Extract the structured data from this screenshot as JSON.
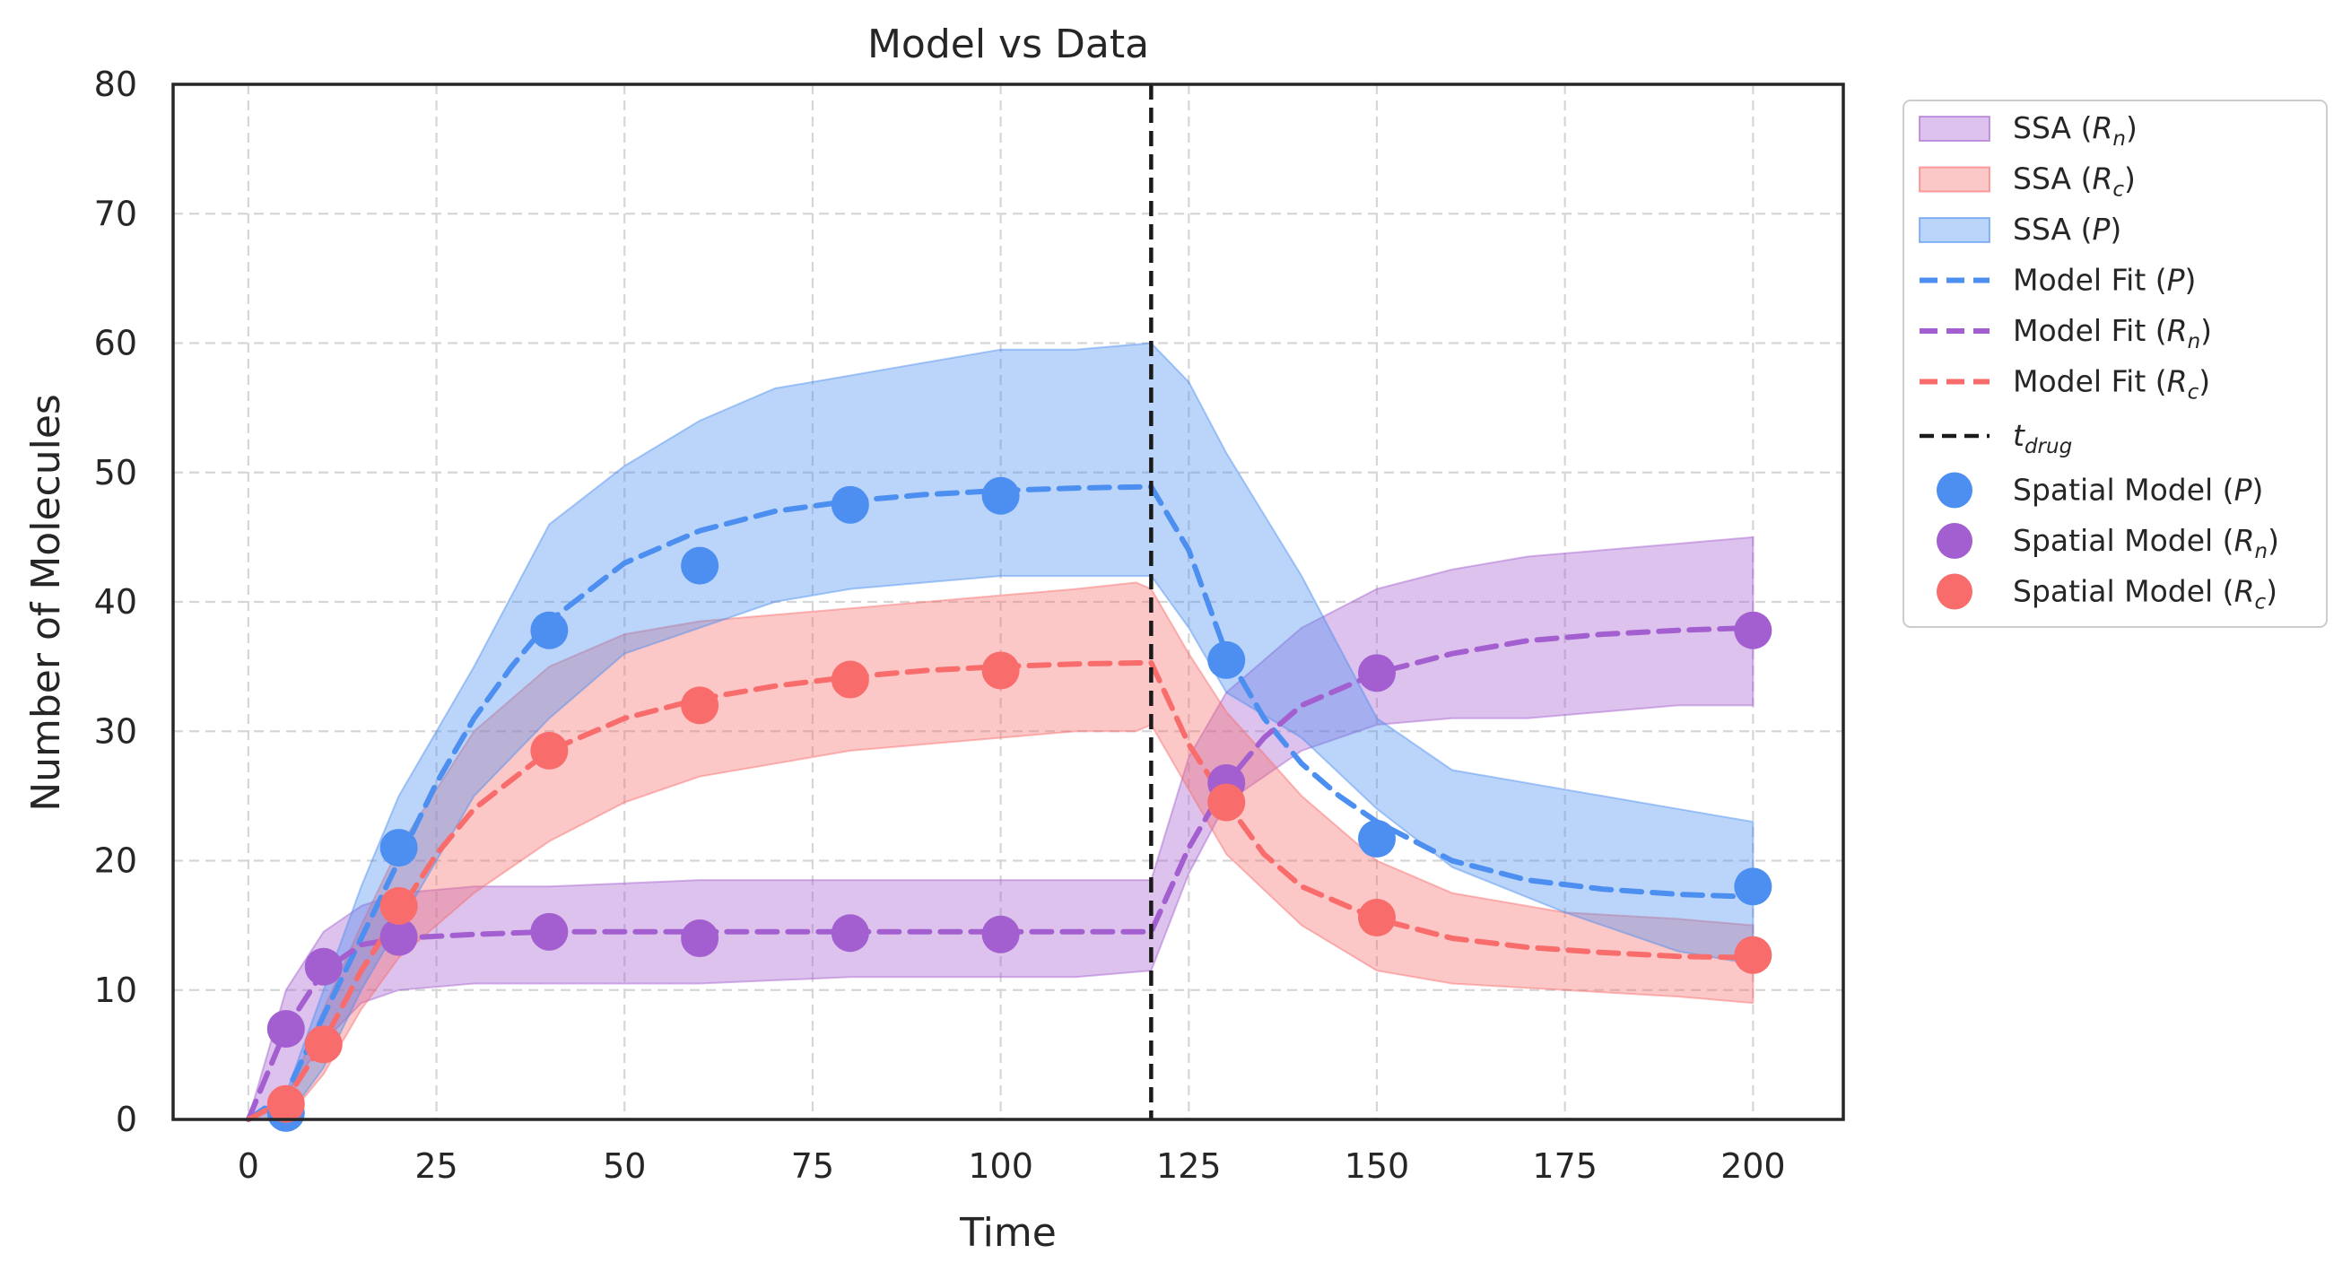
{
  "chart_data": {
    "type": "line",
    "title": "Model vs Data",
    "xlabel": "Time",
    "ylabel": "Number of Molecules",
    "xlim": [
      -10,
      212
    ],
    "ylim": [
      0,
      80
    ],
    "xticks": [
      0,
      25,
      50,
      75,
      100,
      125,
      150,
      175,
      200
    ],
    "yticks": [
      0,
      10,
      20,
      30,
      40,
      50,
      60,
      70,
      80
    ],
    "grid": true,
    "legend_position": "outside-right",
    "t_drug": 120,
    "colors": {
      "P": "#4C8FF0",
      "Rn": "#A35FCF",
      "Rc": "#F86C6C",
      "tdrug": "#1a1a1a"
    },
    "bands": [
      {
        "key": "Rn",
        "label_prefix": "SSA (",
        "label_sym": "R",
        "label_sub": "n",
        "label_suffix": ")",
        "x": [
          0,
          5,
          10,
          15,
          20,
          30,
          40,
          60,
          80,
          100,
          110,
          120,
          125,
          130,
          140,
          150,
          160,
          170,
          180,
          190,
          200
        ],
        "lower": [
          0,
          2,
          6,
          9,
          10,
          10.5,
          10.5,
          10.5,
          11,
          11,
          11,
          11.5,
          19,
          24.5,
          28.5,
          30.5,
          31,
          31,
          31.5,
          32,
          32
        ],
        "upper": [
          0,
          10,
          14.5,
          16.5,
          17.5,
          18,
          18,
          18.5,
          18.5,
          18.5,
          18.5,
          18.5,
          28,
          33,
          38,
          41,
          42.5,
          43.5,
          44,
          44.5,
          45
        ]
      },
      {
        "key": "Rc",
        "label_prefix": "SSA (",
        "label_sym": "R",
        "label_sub": "c",
        "label_suffix": ")",
        "x": [
          0,
          5,
          10,
          15,
          20,
          30,
          40,
          50,
          60,
          80,
          100,
          110,
          118,
          120,
          125,
          130,
          140,
          150,
          160,
          175,
          190,
          200
        ],
        "lower": [
          0,
          0,
          3.5,
          8.5,
          12.5,
          17.5,
          21.5,
          24.5,
          26.5,
          28.5,
          29.5,
          30,
          30,
          30.5,
          25.5,
          20.5,
          15,
          11.5,
          10.5,
          10,
          9.5,
          9
        ],
        "upper": [
          0,
          1.5,
          8.5,
          15,
          21,
          30,
          35,
          37.5,
          38.5,
          39.5,
          40.5,
          41,
          41.5,
          41,
          36,
          31.5,
          25,
          20,
          17.5,
          16,
          15.5,
          15
        ]
      },
      {
        "key": "P",
        "label_prefix": "SSA (",
        "label_sym": "P",
        "label_sub": "",
        "label_suffix": ")",
        "x": [
          0,
          5,
          10,
          15,
          20,
          25,
          30,
          40,
          50,
          60,
          70,
          80,
          90,
          100,
          110,
          120,
          125,
          130,
          140,
          150,
          160,
          175,
          190,
          200
        ],
        "lower": [
          0,
          0,
          4,
          10,
          15,
          20,
          25,
          31,
          36,
          38,
          40,
          41,
          41.5,
          42,
          42,
          42,
          38,
          33,
          29.5,
          24,
          19.5,
          16,
          13,
          12
        ],
        "upper": [
          0,
          2,
          10,
          18,
          25,
          30,
          35,
          46,
          50.5,
          54,
          56.5,
          57.5,
          58.5,
          59.5,
          59.5,
          60,
          57,
          51.5,
          42,
          31,
          27,
          25.5,
          24,
          23
        ]
      }
    ],
    "series": [
      {
        "key": "P",
        "label_prefix": "Model Fit (",
        "label_sym": "P",
        "label_sub": "",
        "label_suffix": ")",
        "x": [
          0,
          5,
          10,
          15,
          20,
          25,
          30,
          35,
          40,
          50,
          60,
          70,
          80,
          90,
          100,
          110,
          120,
          125,
          130,
          135,
          140,
          145,
          150,
          160,
          170,
          180,
          190,
          200
        ],
        "y": [
          0,
          2,
          8,
          14,
          20,
          26,
          31,
          35,
          38.5,
          43,
          45.5,
          47,
          47.8,
          48.3,
          48.6,
          48.8,
          48.9,
          44,
          36,
          31,
          27.5,
          25,
          23,
          20,
          18.5,
          17.8,
          17.4,
          17.2
        ]
      },
      {
        "key": "Rn",
        "label_prefix": "Model Fit (",
        "label_sym": "R",
        "label_sub": "n",
        "label_suffix": ")",
        "x": [
          0,
          5,
          10,
          15,
          20,
          30,
          40,
          60,
          80,
          100,
          120,
          125,
          130,
          135,
          140,
          150,
          160,
          170,
          180,
          190,
          200
        ],
        "y": [
          0,
          7,
          11.5,
          13.5,
          14,
          14.3,
          14.5,
          14.5,
          14.5,
          14.5,
          14.5,
          21,
          26,
          29.5,
          32,
          34.5,
          36,
          37,
          37.5,
          37.8,
          38
        ]
      },
      {
        "key": "Rc",
        "label_prefix": "Model Fit (",
        "label_sym": "R",
        "label_sub": "c",
        "label_suffix": ")",
        "x": [
          0,
          5,
          10,
          15,
          20,
          25,
          30,
          40,
          50,
          60,
          70,
          80,
          90,
          100,
          110,
          120,
          125,
          130,
          135,
          140,
          150,
          160,
          170,
          180,
          190,
          200
        ],
        "y": [
          0,
          1.5,
          6,
          11.5,
          16,
          20.5,
          24,
          28.5,
          31,
          32.5,
          33.5,
          34.2,
          34.7,
          35,
          35.2,
          35.3,
          29,
          24.5,
          20.5,
          18,
          15.5,
          14,
          13.3,
          12.9,
          12.6,
          12.5
        ]
      }
    ],
    "scatter": [
      {
        "key": "P",
        "label_prefix": "Spatial Model (",
        "label_sym": "P",
        "label_sub": "",
        "label_suffix": ")",
        "x": [
          5,
          20,
          40,
          60,
          80,
          100,
          130,
          150,
          200
        ],
        "y": [
          0.5,
          21,
          37.8,
          42.8,
          47.5,
          48.2,
          35.5,
          21.7,
          18
        ]
      },
      {
        "key": "Rn",
        "label_prefix": "Spatial Model (",
        "label_sym": "R",
        "label_sub": "n",
        "label_suffix": ")",
        "x": [
          5,
          10,
          20,
          40,
          60,
          80,
          100,
          130,
          150,
          200
        ],
        "y": [
          7,
          11.8,
          14.1,
          14.5,
          14,
          14.4,
          14.3,
          26,
          34.5,
          37.8
        ]
      },
      {
        "key": "Rc",
        "label_prefix": "Spatial Model (",
        "label_sym": "R",
        "label_sub": "c",
        "label_suffix": ")",
        "x": [
          5,
          10,
          20,
          40,
          60,
          80,
          100,
          130,
          150,
          200
        ],
        "y": [
          1.2,
          5.8,
          16.5,
          28.5,
          32,
          34,
          34.7,
          24.5,
          15.6,
          12.7
        ]
      }
    ],
    "vline": {
      "label_sym": "t",
      "label_sub": "drug"
    }
  }
}
